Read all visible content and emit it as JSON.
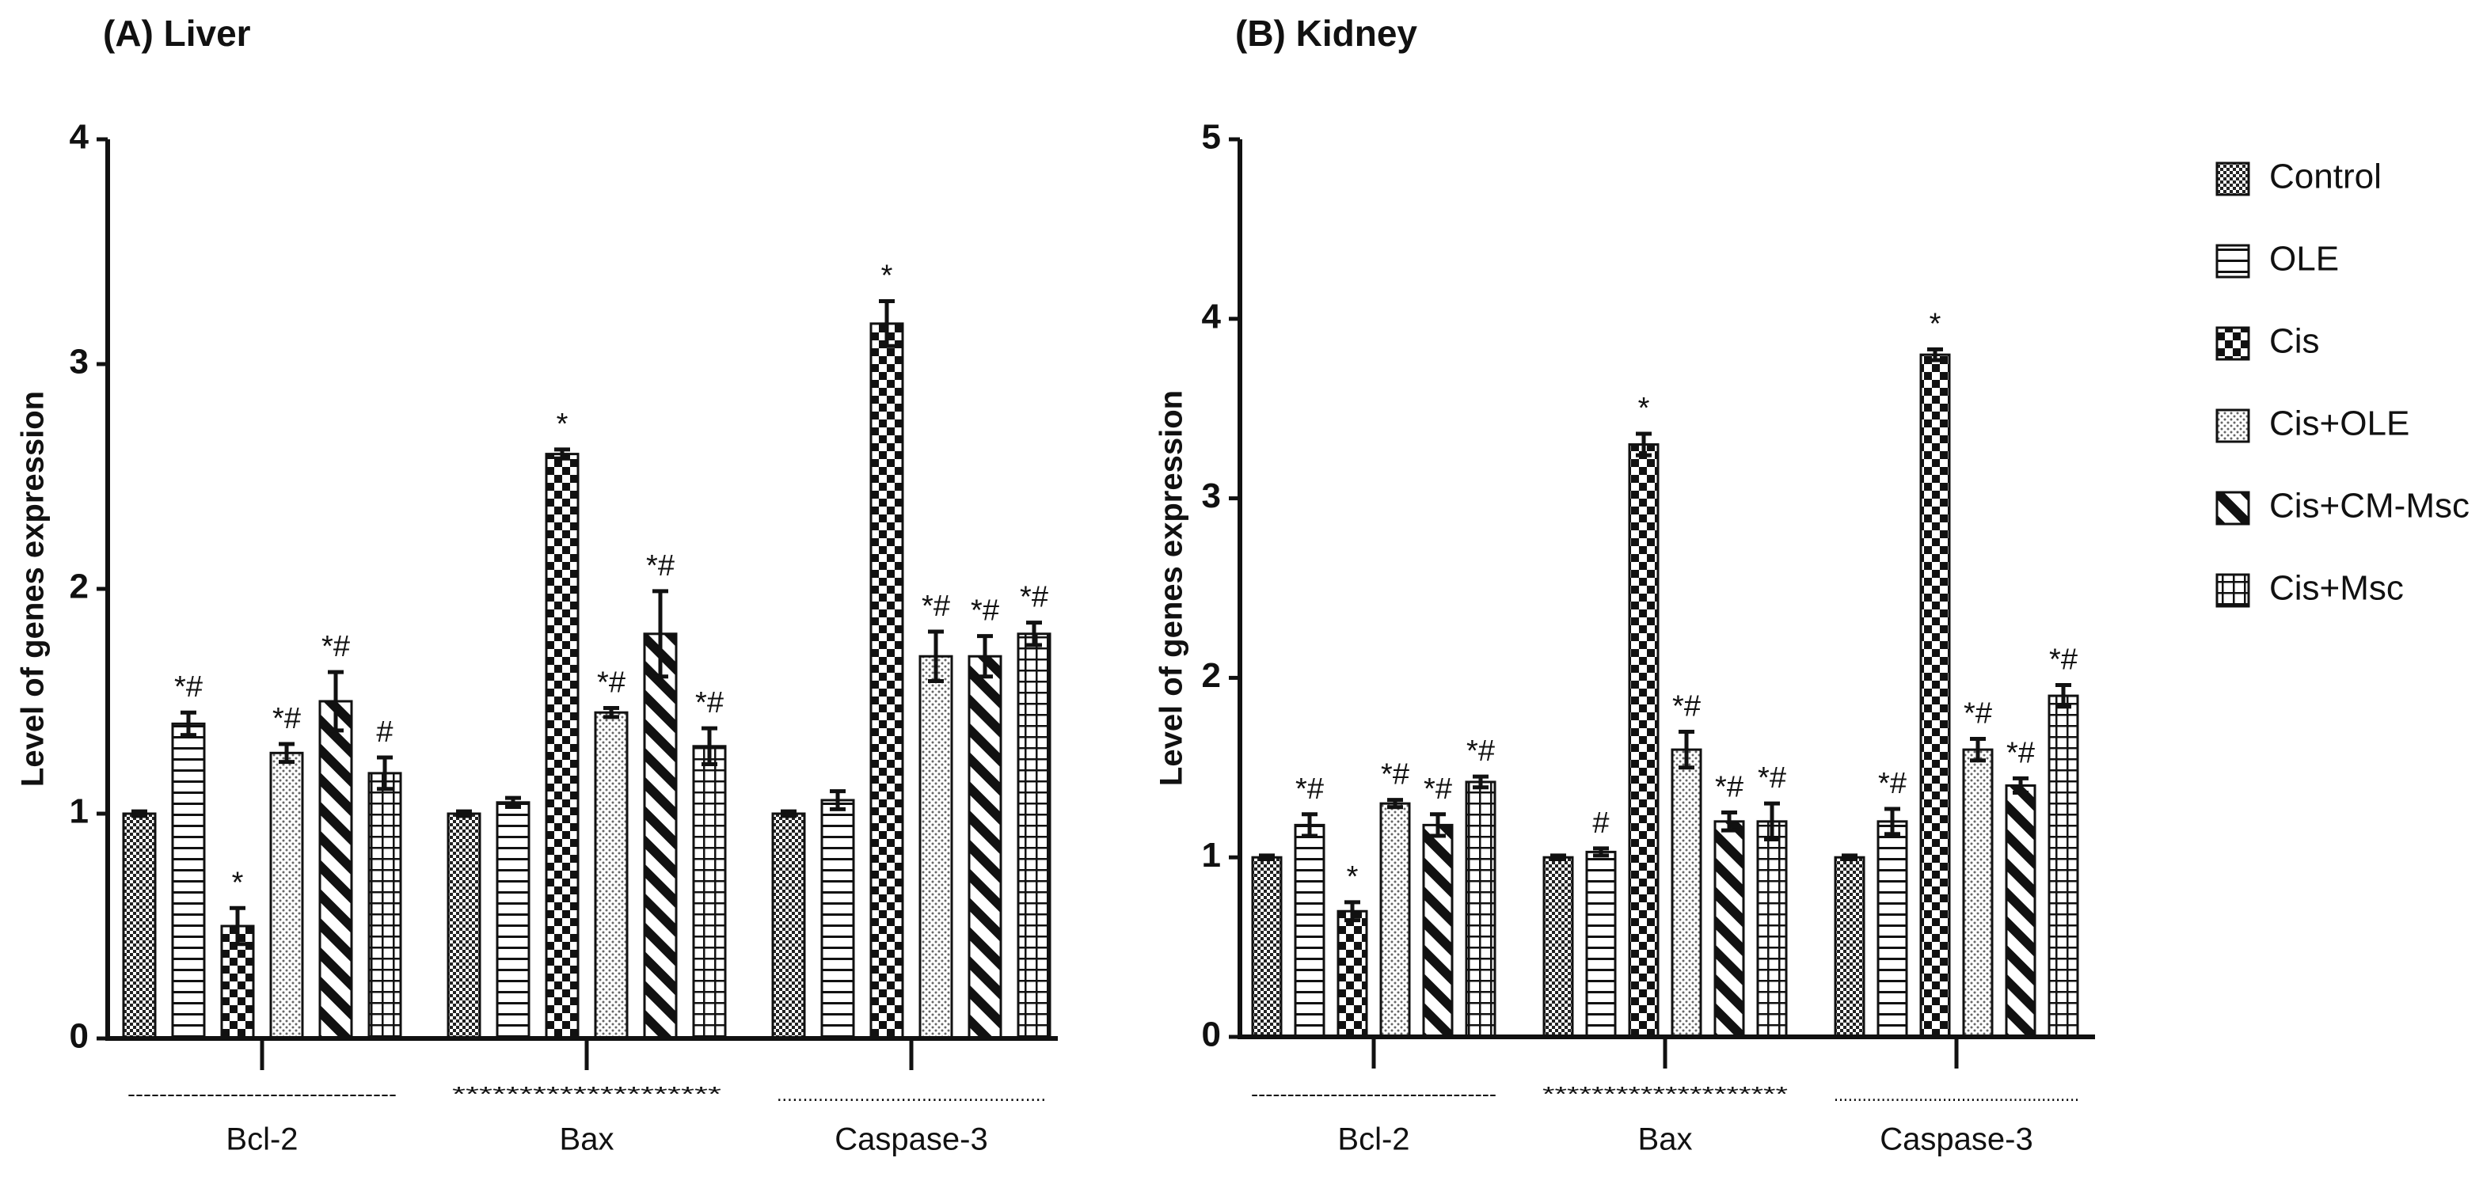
{
  "chart_data": [
    {
      "type": "bar",
      "title": "(A) Liver",
      "y_label": "Level of genes expression",
      "categories": [
        "Bcl-2",
        "Bax",
        "Caspase-3"
      ],
      "category_rules": [
        "----------------------------------",
        "********************",
        "...................................................."
      ],
      "ylim": [
        0,
        4
      ],
      "yticks": [
        0,
        1,
        2,
        3,
        4
      ],
      "series": [
        {
          "pattern": "fine-check",
          "values": [
            1.0,
            1.0,
            1.0
          ],
          "errors": [
            0.01,
            0.01,
            0.01
          ],
          "annotations": [
            null,
            null,
            null
          ]
        },
        {
          "pattern": "hlines",
          "values": [
            1.4,
            1.05,
            1.06
          ],
          "errors": [
            0.05,
            0.02,
            0.04
          ],
          "annotations": [
            "*#",
            null,
            null
          ]
        },
        {
          "pattern": "big-check",
          "values": [
            0.5,
            2.6,
            3.18
          ],
          "errors": [
            0.08,
            0.02,
            0.1
          ],
          "annotations": [
            "*",
            "*",
            "*"
          ]
        },
        {
          "pattern": "dots",
          "values": [
            1.27,
            1.45,
            1.7
          ],
          "errors": [
            0.04,
            0.02,
            0.11
          ],
          "annotations": [
            "*#",
            "*#",
            "*#"
          ]
        },
        {
          "pattern": "diag",
          "values": [
            1.5,
            1.8,
            1.7
          ],
          "errors": [
            0.13,
            0.19,
            0.09
          ],
          "annotations": [
            "*#",
            "*#",
            "*#"
          ]
        },
        {
          "pattern": "grid",
          "values": [
            1.18,
            1.3,
            1.8
          ],
          "errors": [
            0.07,
            0.08,
            0.05
          ],
          "annotations": [
            "#",
            "*#",
            "*#"
          ]
        }
      ]
    },
    {
      "type": "bar",
      "title": "(B) Kidney",
      "y_label": "Level of genes expression",
      "categories": [
        "Bcl-2",
        "Bax",
        "Caspase-3"
      ],
      "category_rules": [
        "----------------------------------",
        "********************",
        "...................................................."
      ],
      "ylim": [
        0,
        5
      ],
      "yticks": [
        0,
        1,
        2,
        3,
        4,
        5
      ],
      "legend": "right",
      "series": [
        {
          "name": "Control",
          "pattern": "fine-check",
          "values": [
            1.0,
            1.0,
            1.0
          ],
          "errors": [
            0.01,
            0.01,
            0.01
          ],
          "annotations": [
            null,
            null,
            null
          ]
        },
        {
          "name": "OLE",
          "pattern": "hlines",
          "values": [
            1.18,
            1.03,
            1.2
          ],
          "errors": [
            0.06,
            0.02,
            0.07
          ],
          "annotations": [
            "*#",
            "#",
            "*#"
          ]
        },
        {
          "name": "Cis",
          "pattern": "big-check",
          "values": [
            0.7,
            3.3,
            3.8
          ],
          "errors": [
            0.05,
            0.06,
            0.03
          ],
          "annotations": [
            "*",
            "*",
            "*"
          ]
        },
        {
          "name": "Cis+OLE",
          "pattern": "dots",
          "values": [
            1.3,
            1.6,
            1.6
          ],
          "errors": [
            0.02,
            0.1,
            0.06
          ],
          "annotations": [
            "*#",
            "*#",
            "*#"
          ]
        },
        {
          "name": "Cis+CM-Msc",
          "pattern": "diag",
          "values": [
            1.18,
            1.2,
            1.4
          ],
          "errors": [
            0.06,
            0.05,
            0.04
          ],
          "annotations": [
            "*#",
            "*#",
            "*#"
          ]
        },
        {
          "name": "Cis+Msc",
          "pattern": "grid",
          "values": [
            1.42,
            1.2,
            1.9
          ],
          "errors": [
            0.03,
            0.1,
            0.06
          ],
          "annotations": [
            "*#",
            "*#",
            "*#"
          ]
        }
      ]
    }
  ]
}
